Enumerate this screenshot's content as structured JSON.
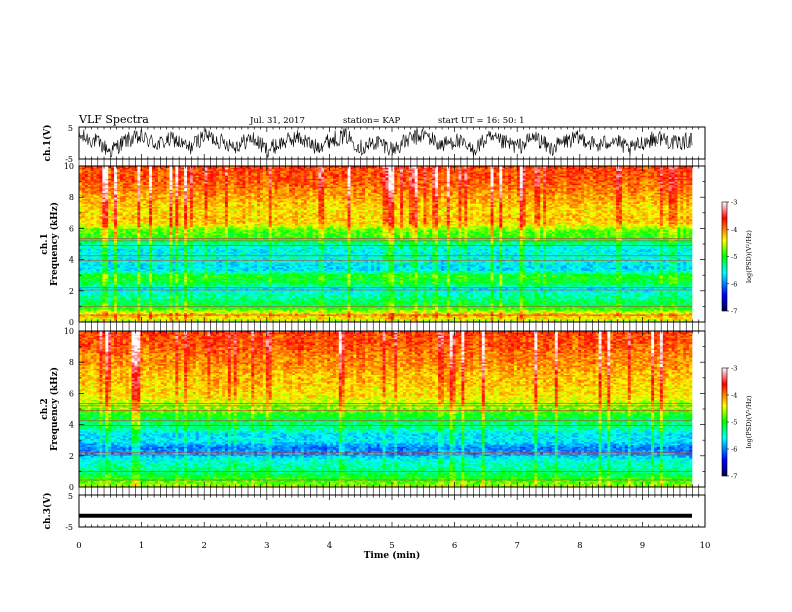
{
  "header": {
    "title": "VLF Spectra",
    "date": "Jul. 31, 2017",
    "station": "station= KAP",
    "start": "start UT =  16: 50: 1"
  },
  "chart_data": [
    {
      "type": "line",
      "panel": "ch1-waveform",
      "ylabel": "ch.1(V)",
      "ylim": [
        -5,
        5
      ],
      "ytick_labels": [
        "-5",
        "5"
      ],
      "xlim": [
        0,
        10
      ],
      "series": [
        {
          "values": [
            1.5,
            0.5,
            -1.8,
            0.6,
            1.2,
            -0.3,
            0.9,
            -1.2,
            1.8,
            0.4,
            -0.6,
            1.1,
            -1.5,
            0.2,
            1.3,
            -0.9,
            0.7,
            1.6,
            -1.1,
            0.3,
            -1.4,
            0.8,
            1.9,
            -0.5,
            0.6,
            -1.7,
            1.0,
            0.1,
            -0.8,
            1.4,
            -1.3,
            0.5,
            1.1,
            -0.7,
            0.9,
            -1.6,
            0.4,
            1.2,
            -0.2,
            0.8
          ]
        }
      ]
    },
    {
      "type": "heatmap",
      "panel": "ch1-spectrogram",
      "ylabel": "ch.1\nFrequency (kHz)",
      "xlim": [
        0,
        10
      ],
      "ylim": [
        0,
        10
      ],
      "ytick_labels": [
        "0",
        "2",
        "4",
        "6",
        "8",
        "10"
      ],
      "colorbar": {
        "label": "log(PSD)(V²/Hz)",
        "range": [
          -7,
          -3
        ],
        "tick_labels": [
          "-3",
          "-4",
          "-5",
          "-6",
          "-7"
        ]
      },
      "freq_profile_log_psd": [
        -4.6,
        -4.1,
        -5.0,
        -5.2,
        -5.4,
        -5.6,
        -5.1,
        -5.0,
        -5.7,
        -5.6,
        -5.5,
        -5.6,
        -5.3,
        -4.9,
        -4.8,
        -4.3,
        -4.2,
        -4.3,
        -4.2,
        -4.1,
        -4.0,
        -3.9,
        -3.8,
        -3.8,
        -3.7
      ]
    },
    {
      "type": "heatmap",
      "panel": "ch2-spectrogram",
      "ylabel": "ch.2\nFrequency (kHz)",
      "xlim": [
        0,
        10
      ],
      "ylim": [
        0,
        10
      ],
      "ytick_labels": [
        "0",
        "2",
        "4",
        "6",
        "8",
        "10"
      ],
      "colorbar": {
        "label": "log(PSD)(V²/Hz)",
        "range": [
          -7,
          -3
        ],
        "tick_labels": [
          "-3",
          "-4",
          "-5",
          "-6",
          "-7"
        ]
      },
      "freq_profile_log_psd": [
        -4.6,
        -4.9,
        -5.2,
        -5.4,
        -5.5,
        -5.9,
        -6.0,
        -5.6,
        -5.7,
        -5.3,
        -5.2,
        -5.0,
        -4.7,
        -4.5,
        -4.3,
        -4.3,
        -4.2,
        -4.2,
        -4.1,
        -4.0,
        -4.0,
        -3.9,
        -3.8,
        -3.8,
        -3.7
      ]
    },
    {
      "type": "line",
      "panel": "ch3-waveform",
      "ylabel": "ch.3(V)",
      "ylim": [
        -5,
        5
      ],
      "ytick_labels": [
        "-5",
        "5"
      ],
      "xlim": [
        0,
        10
      ],
      "series": [
        {
          "values": [
            -1.5,
            -1.5
          ]
        }
      ]
    }
  ],
  "x_axis": {
    "label": "Time (min)",
    "tick_labels": [
      "0",
      "1",
      "2",
      "3",
      "4",
      "5",
      "6",
      "7",
      "8",
      "9",
      "10"
    ]
  },
  "colors": {
    "colormap": [
      "#00004a",
      "#0000ff",
      "#00ffff",
      "#00ff00",
      "#ffff00",
      "#ff0000",
      "#ffffff"
    ]
  }
}
